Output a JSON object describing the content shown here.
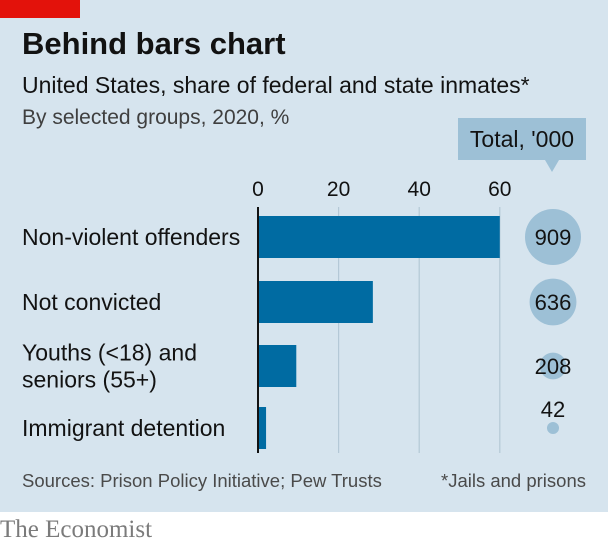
{
  "header": {
    "title": "Behind bars chart",
    "subtitle": "United States, share of federal and state inmates*",
    "note": "By selected groups, 2020, %"
  },
  "footer": {
    "source": "Sources: Prison Policy Initiative; Pew Trusts",
    "footnote": "*Jails and prisons",
    "brand": "The Economist"
  },
  "colors": {
    "accent": "#e3120b",
    "panel": "#d6e4ee",
    "bar": "#006ba2",
    "bubble": "#9dc0d6",
    "callout": "#9dc0d6"
  },
  "chart_data": {
    "type": "bar",
    "orientation": "horizontal",
    "categories": [
      "Non-violent offenders",
      "Not convicted",
      "Youths (<18) and seniors (55+)",
      "Immigrant detention"
    ],
    "category_lines": [
      [
        "Non-violent offenders"
      ],
      [
        "Not convicted"
      ],
      [
        "Youths (<18) and",
        "seniors (55+)"
      ],
      [
        "Immigrant detention"
      ]
    ],
    "values": [
      60,
      28.5,
      9.5,
      2
    ],
    "xlim": [
      0,
      60
    ],
    "xticks": [
      "0",
      "20",
      "40",
      "60"
    ],
    "grid": true,
    "totals": {
      "label": "Total, '000",
      "values": [
        909,
        636,
        208,
        42
      ]
    }
  }
}
